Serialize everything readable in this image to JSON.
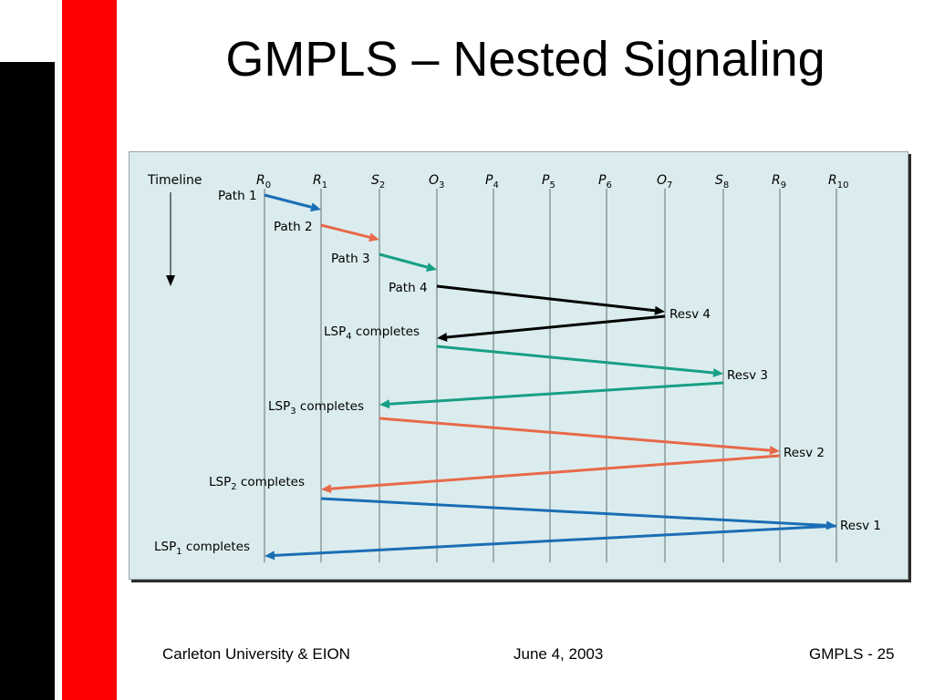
{
  "slide": {
    "title": "GMPLS – Nested Signaling",
    "footer": {
      "left": "Carleton University & EION",
      "center": "June 4, 2003",
      "right": "GMPLS - 25"
    }
  },
  "diagram": {
    "timeline_label": "Timeline",
    "nodes": [
      {
        "base": "R",
        "sub": "0"
      },
      {
        "base": "R",
        "sub": "1"
      },
      {
        "base": "S",
        "sub": "2"
      },
      {
        "base": "O",
        "sub": "3"
      },
      {
        "base": "P",
        "sub": "4"
      },
      {
        "base": "P",
        "sub": "5"
      },
      {
        "base": "P",
        "sub": "6"
      },
      {
        "base": "O",
        "sub": "7"
      },
      {
        "base": "S",
        "sub": "8"
      },
      {
        "base": "R",
        "sub": "9"
      },
      {
        "base": "R",
        "sub": "10"
      }
    ],
    "messages": [
      {
        "label": "Path 1",
        "from": 0,
        "to": 1,
        "color": "#1a6eb5"
      },
      {
        "label": "Path 2",
        "from": 1,
        "to": 2,
        "color": "#e8694a"
      },
      {
        "label": "Path 3",
        "from": 2,
        "to": 3,
        "color": "#169f84"
      },
      {
        "label": "Path 4",
        "from": 3,
        "to": 7,
        "color": "#000000"
      },
      {
        "label": "Resv 4",
        "from": 7,
        "to": 3,
        "color": "#000000"
      },
      {
        "label": "Resv 3",
        "from": 8,
        "to": 2,
        "color": "#169f84"
      },
      {
        "label": "Resv 2",
        "from": 9,
        "to": 1,
        "color": "#e8694a"
      },
      {
        "label": "Resv 1",
        "from": 10,
        "to": 0,
        "color": "#1a6eb5"
      }
    ],
    "completions": [
      {
        "base": "LSP",
        "sub": "4",
        "rest": " completes"
      },
      {
        "base": "LSP",
        "sub": "3",
        "rest": " completes"
      },
      {
        "base": "LSP",
        "sub": "2",
        "rest": " completes"
      },
      {
        "base": "LSP",
        "sub": "1",
        "rest": " completes"
      }
    ],
    "colors": {
      "background": "#dbecee",
      "lifeline": "#7f8c8e",
      "blue": "#1a6eb5",
      "orange": "#e8694a",
      "green": "#169f84",
      "black": "#000000"
    }
  }
}
